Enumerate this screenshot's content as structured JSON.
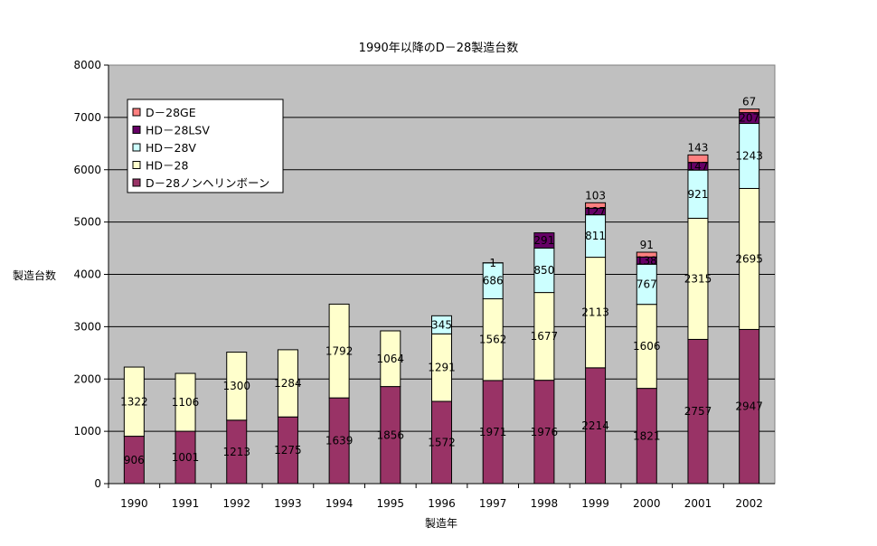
{
  "chart_data": {
    "type": "bar",
    "stacked": true,
    "title": "1990年以降のD－28製造台数",
    "xlabel": "製造年",
    "ylabel": "製造台数",
    "ylim": [
      0,
      8000
    ],
    "yticks": [
      0,
      1000,
      2000,
      3000,
      4000,
      5000,
      6000,
      7000,
      8000
    ],
    "grid": true,
    "legend_position": "top-left",
    "background": "#c0c0c0",
    "categories": [
      "1990",
      "1991",
      "1992",
      "1993",
      "1994",
      "1995",
      "1996",
      "1997",
      "1998",
      "1999",
      "2000",
      "2001",
      "2002"
    ],
    "series": [
      {
        "name": "D－28ノンヘリンボーン",
        "color": "#993366",
        "values": [
          906,
          1001,
          1213,
          1275,
          1639,
          1856,
          1572,
          1971,
          1976,
          2214,
          1821,
          2757,
          2947
        ]
      },
      {
        "name": "HD－28",
        "color": "#ffffcc",
        "values": [
          1322,
          1106,
          1300,
          1284,
          1792,
          1064,
          1291,
          1562,
          1677,
          2113,
          1606,
          2315,
          2695
        ]
      },
      {
        "name": "HD－28V",
        "color": "#ccffff",
        "values": [
          null,
          null,
          null,
          null,
          null,
          null,
          345,
          686,
          850,
          811,
          767,
          921,
          1243
        ]
      },
      {
        "name": "HD－28LSV",
        "color": "#660066",
        "values": [
          null,
          null,
          null,
          null,
          null,
          null,
          null,
          1,
          291,
          127,
          138,
          147,
          207
        ]
      },
      {
        "name": "D－28GE",
        "color": "#ff8080",
        "values": [
          null,
          null,
          null,
          null,
          null,
          null,
          null,
          null,
          null,
          103,
          91,
          143,
          67
        ]
      }
    ]
  }
}
